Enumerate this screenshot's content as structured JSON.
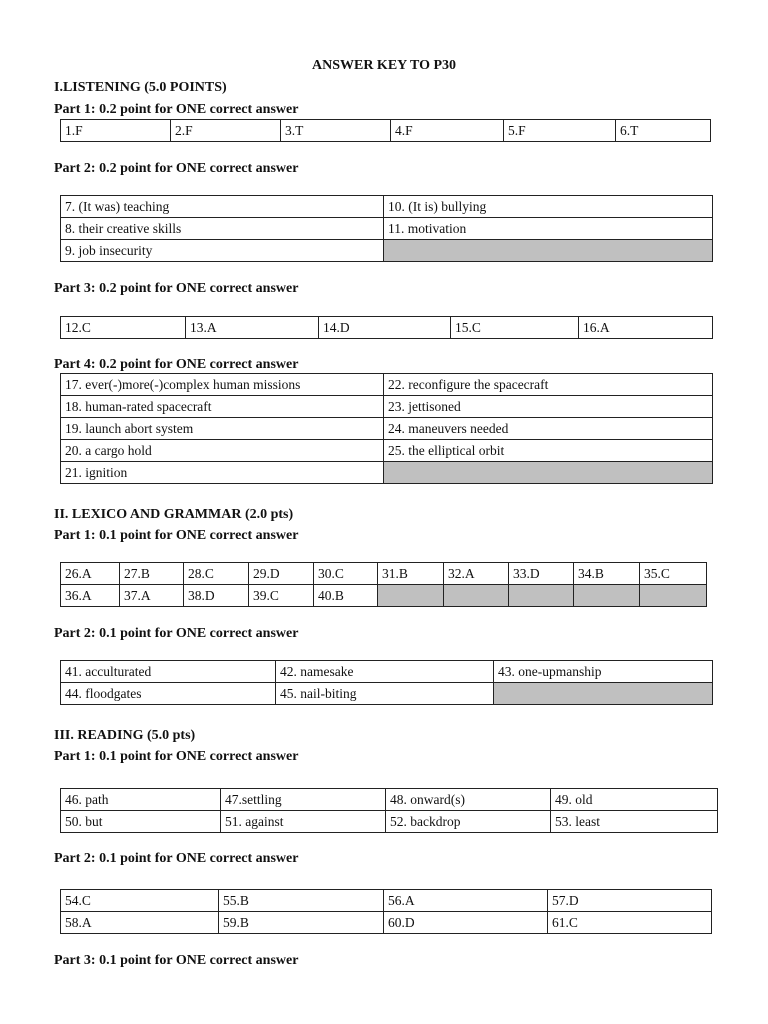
{
  "title": "ANSWER KEY TO P30",
  "sections": {
    "listening": {
      "heading": "I.LISTENING (5.0 POINTS)",
      "part1": {
        "heading": "Part 1:  0.2 point for ONE correct answer",
        "rows": [
          [
            "1.F",
            "2.F",
            "3.T",
            "4.F",
            "5.F",
            "6.T"
          ]
        ]
      },
      "part2": {
        "heading": "Part 2: 0.2 point for ONE correct answer",
        "rows": [
          [
            "7. (It was) teaching",
            "10. (It is) bullying"
          ],
          [
            "8. their creative skills",
            "11. motivation"
          ],
          [
            "9. job insecurity",
            null
          ]
        ]
      },
      "part3": {
        "heading": "Part 3: 0.2 point for ONE correct answer",
        "rows": [
          [
            "12.C",
            "13.A",
            "14.D",
            "15.C",
            "16.A"
          ]
        ]
      },
      "part4": {
        "heading": "Part 4: 0.2 point for ONE correct answer",
        "rows": [
          [
            "17. ever(-)more(-)complex human missions",
            "22. reconfigure the spacecraft"
          ],
          [
            "18. human-rated spacecraft",
            "23. jettisoned"
          ],
          [
            "19. launch abort system",
            "24. maneuvers needed"
          ],
          [
            "20. a cargo hold",
            "25. the elliptical orbit"
          ],
          [
            "21. ignition",
            null
          ]
        ]
      }
    },
    "lexico": {
      "heading": "II. LEXICO AND GRAMMAR (2.0 pts)",
      "part1": {
        "heading": "Part 1: 0.1 point for ONE correct answer",
        "rows": [
          [
            "26.A",
            "27.B",
            "28.C",
            "29.D",
            "30.C",
            "31.B",
            "32.A",
            "33.D",
            "34.B",
            "35.C"
          ],
          [
            "36.A",
            "37.A",
            "38.D",
            "39.C",
            "40.B",
            null,
            null,
            null,
            null,
            null
          ]
        ]
      },
      "part2": {
        "heading": "Part 2: 0.1 point for ONE correct answer",
        "rows": [
          [
            "41. acculturated",
            "42. namesake",
            "43. one-upmanship"
          ],
          [
            "44. floodgates",
            "45. nail-biting",
            null
          ]
        ]
      }
    },
    "reading": {
      "heading": "III. READING (5.0 pts)",
      "part1": {
        "heading": "Part 1: 0.1 point for ONE correct answer",
        "rows": [
          [
            "46.  path",
            "47.settling",
            "48. onward(s)",
            "49. old"
          ],
          [
            "50. but",
            "51. against",
            "52. backdrop",
            "53. least"
          ]
        ]
      },
      "part2": {
        "heading": "Part 2: 0.1 point for ONE correct answer",
        "rows": [
          [
            "54.C",
            "55.B",
            "56.A",
            "57.D"
          ],
          [
            "58.A",
            "59.B",
            "60.D",
            "61.C"
          ]
        ]
      },
      "part3": {
        "heading": "Part 3: 0.1 point for ONE correct answer"
      }
    }
  }
}
